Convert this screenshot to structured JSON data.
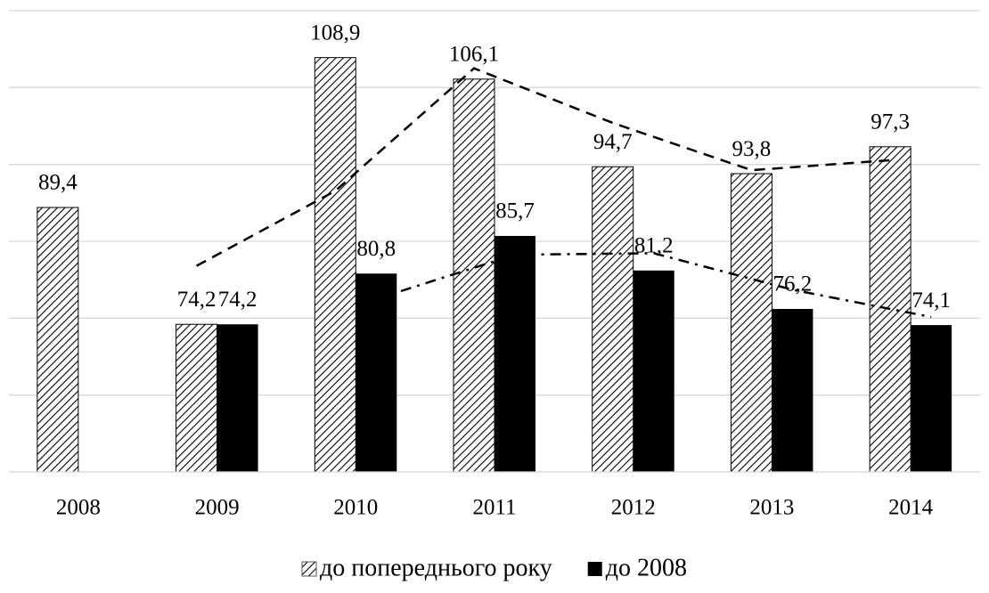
{
  "chart_data": {
    "type": "bar",
    "categories": [
      "2008",
      "2009",
      "2010",
      "2011",
      "2012",
      "2013",
      "2014"
    ],
    "series": [
      {
        "name": "до попереднього року",
        "color": "#000000",
        "pattern": "hatch",
        "values": [
          89.4,
          74.2,
          108.9,
          106.1,
          94.7,
          93.8,
          97.3
        ],
        "value_labels": [
          "89,4",
          "74,2",
          "108,9",
          "106,1",
          "94,7",
          "93,8",
          "97,3"
        ],
        "trendline": "moving_average",
        "trendline_period": 2,
        "trendline_dash": "dash"
      },
      {
        "name": "до 2008",
        "color": "#000000",
        "pattern": "solid",
        "values": [
          null,
          74.2,
          80.8,
          85.7,
          81.2,
          76.2,
          74.1
        ],
        "value_labels": [
          null,
          "74,2",
          "80,8",
          "85,7",
          "81,2",
          "76,2",
          "74,1"
        ],
        "trendline": "moving_average",
        "trendline_period": 2,
        "trendline_dash": "dashdot"
      }
    ],
    "ylim": [
      55,
      115
    ],
    "yticks": [
      55,
      65,
      75,
      85,
      95,
      105,
      115
    ],
    "grid": true,
    "legend": "bottom"
  }
}
